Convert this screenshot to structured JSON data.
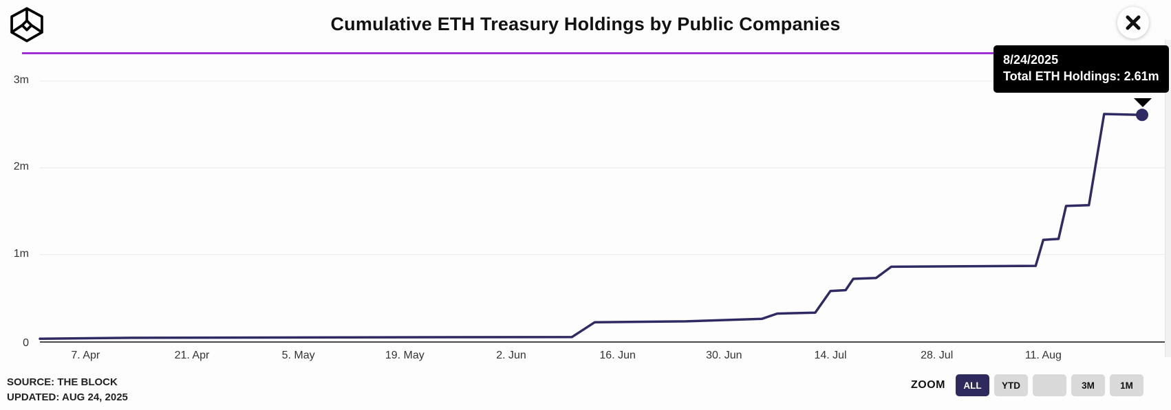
{
  "header": {
    "title": "Cumulative ETH Treasury Holdings by Public Companies",
    "logo_name": "the-block-logo",
    "close_glyph": "✕"
  },
  "tooltip": {
    "date": "8/24/2025",
    "text": "Total ETH Holdings: 2.61m"
  },
  "footer": {
    "source": "SOURCE: THE BLOCK",
    "updated": "UPDATED: AUG 24, 2025",
    "zoom_label": "ZOOM",
    "zoom_buttons": [
      {
        "label": "ALL",
        "active": true
      },
      {
        "label": "YTD",
        "active": false
      },
      {
        "label": "",
        "active": false
      },
      {
        "label": "3M",
        "active": false
      },
      {
        "label": "1M",
        "active": false
      }
    ]
  },
  "colors": {
    "line": "#2f2a63",
    "accent_purple": "#a02fd6",
    "tooltip_bg": "#000000",
    "button_active_bg": "#2e2a5e",
    "button_bg": "#d9d9d9",
    "axis_text": "#333333",
    "gridline": "#e9e9e9",
    "axis_line": "#4a4a4a"
  },
  "chart_data": {
    "type": "line",
    "title": "Cumulative ETH Treasury Holdings by Public Companies",
    "xlabel": "",
    "ylabel": "",
    "grid": true,
    "legend": false,
    "ylim": [
      0,
      3.2
    ],
    "y_unit": "millions of ETH",
    "y_ticks": [
      {
        "v": 0,
        "label": "0"
      },
      {
        "v": 1,
        "label": "1m"
      },
      {
        "v": 2,
        "label": "2m"
      },
      {
        "v": 3,
        "label": "3m"
      }
    ],
    "x_range_days": [
      0,
      145
    ],
    "x_ticks": [
      {
        "day": 6,
        "label": "7. Apr"
      },
      {
        "day": 20,
        "label": "21. Apr"
      },
      {
        "day": 34,
        "label": "5. May"
      },
      {
        "day": 48,
        "label": "19. May"
      },
      {
        "day": 62,
        "label": "2. Jun"
      },
      {
        "day": 76,
        "label": "16. Jun"
      },
      {
        "day": 90,
        "label": "30. Jun"
      },
      {
        "day": 104,
        "label": "14. Jul"
      },
      {
        "day": 118,
        "label": "28. Jul"
      },
      {
        "day": 132,
        "label": "11. Aug"
      }
    ],
    "series": [
      {
        "name": "Total ETH Holdings",
        "color": "#2f2a63",
        "points": [
          {
            "date": "2025-04-01",
            "day": 0,
            "value_m": 0.03
          },
          {
            "date": "2025-04-13",
            "day": 12,
            "value_m": 0.04
          },
          {
            "date": "2025-05-11",
            "day": 40,
            "value_m": 0.045
          },
          {
            "date": "2025-06-10",
            "day": 70,
            "value_m": 0.05
          },
          {
            "date": "2025-06-13",
            "day": 73,
            "value_m": 0.22
          },
          {
            "date": "2025-06-25",
            "day": 85,
            "value_m": 0.23
          },
          {
            "date": "2025-07-05",
            "day": 95,
            "value_m": 0.26
          },
          {
            "date": "2025-07-07",
            "day": 97,
            "value_m": 0.32
          },
          {
            "date": "2025-07-12",
            "day": 102,
            "value_m": 0.33
          },
          {
            "date": "2025-07-14",
            "day": 104,
            "value_m": 0.58
          },
          {
            "date": "2025-07-16",
            "day": 106,
            "value_m": 0.59
          },
          {
            "date": "2025-07-17",
            "day": 107,
            "value_m": 0.72
          },
          {
            "date": "2025-07-20",
            "day": 110,
            "value_m": 0.73
          },
          {
            "date": "2025-07-22",
            "day": 112,
            "value_m": 0.86
          },
          {
            "date": "2025-08-10",
            "day": 131,
            "value_m": 0.87
          },
          {
            "date": "2025-08-11",
            "day": 132,
            "value_m": 1.17
          },
          {
            "date": "2025-08-13",
            "day": 134,
            "value_m": 1.18
          },
          {
            "date": "2025-08-14",
            "day": 135,
            "value_m": 1.56
          },
          {
            "date": "2025-08-17",
            "day": 138,
            "value_m": 1.57
          },
          {
            "date": "2025-08-19",
            "day": 140,
            "value_m": 2.62
          },
          {
            "date": "2025-08-24",
            "day": 145,
            "value_m": 2.61
          }
        ],
        "last_point_marker": {
          "date": "8/24/2025",
          "value_label": "2.61m"
        }
      }
    ]
  }
}
